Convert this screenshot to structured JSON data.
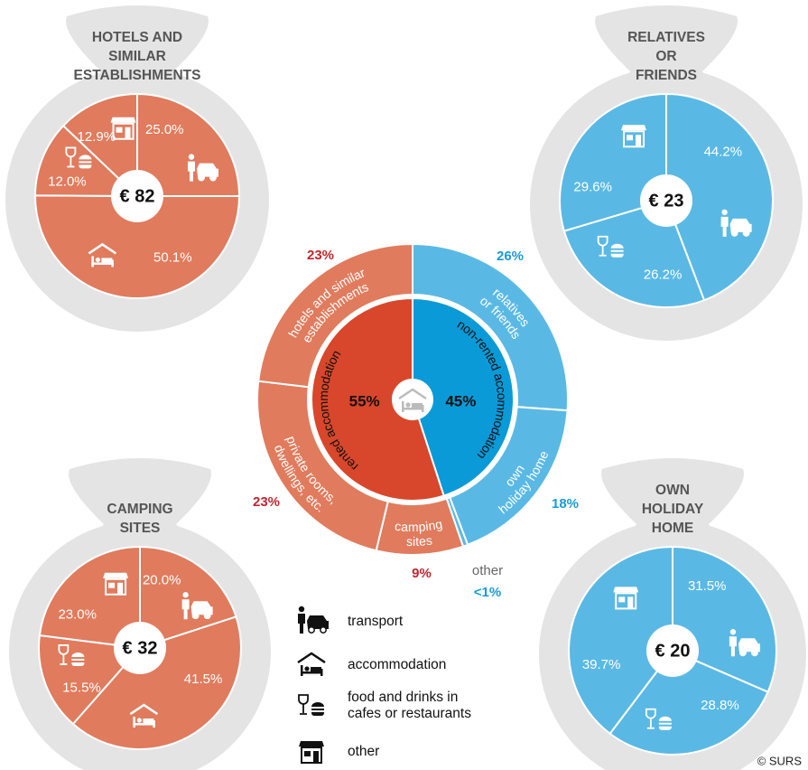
{
  "chart_data": [
    {
      "type": "sunburst",
      "inner": {
        "categories": [
          "non-rented accommodation",
          "rented accommodation"
        ],
        "values": [
          45,
          55
        ],
        "value_labels": [
          "45%",
          "55%"
        ],
        "colors": [
          "#0a9ad8",
          "#d8472b"
        ]
      },
      "outer": {
        "categories": [
          [
            "relatives",
            "or friends"
          ],
          [
            "own",
            "holiday home"
          ],
          [
            "other"
          ],
          [
            "camping",
            "sites"
          ],
          [
            "private rooms,",
            "dwellings, etc."
          ],
          [
            "hotels and similar",
            "establishments"
          ]
        ],
        "values": [
          26,
          18,
          0.5,
          9,
          23,
          23
        ],
        "value_labels": [
          "26%",
          "18%",
          "<1%",
          "9%",
          "23%",
          "23%"
        ],
        "colors": [
          "#5ab9e4",
          "#5ab9e4",
          "#5ab9e4",
          "#e07b5d",
          "#e07b5d",
          "#e07b5d"
        ],
        "value_label_colors": [
          "#1a9ad6",
          "#1a9ad6",
          "#1a9ad6",
          "#c0262d",
          "#c0262d",
          "#c0262d"
        ]
      }
    },
    {
      "type": "pie",
      "title": [
        "HOTELS AND",
        "SIMILAR",
        "ESTABLISHMENTS"
      ],
      "center_label": "€ 82",
      "values": [
        25.0,
        50.1,
        12.0,
        12.9
      ],
      "value_labels": [
        "25.0%",
        "50.1%",
        "12.0%",
        "12.9%"
      ],
      "color": "#e07b5d"
    },
    {
      "type": "pie",
      "title": [
        "RELATIVES",
        "OR",
        "FRIENDS"
      ],
      "center_label": "€ 23",
      "values": [
        44.2,
        null,
        26.2,
        29.6
      ],
      "value_labels": [
        "44.2%",
        null,
        "26.2%",
        "29.6%"
      ],
      "color": "#5ab9e4"
    },
    {
      "type": "pie",
      "title": [
        "CAMPING",
        "SITES"
      ],
      "center_label": "€ 32",
      "values": [
        20.0,
        41.5,
        15.5,
        23.0
      ],
      "value_labels": [
        "20.0%",
        "41.5%",
        "15.5%",
        "23.0%"
      ],
      "color": "#e07b5d"
    },
    {
      "type": "pie",
      "title": [
        "OWN",
        "HOLIDAY",
        "HOME"
      ],
      "center_label": "€ 20",
      "values": [
        31.5,
        null,
        28.8,
        39.7
      ],
      "value_labels": [
        "31.5%",
        null,
        "28.8%",
        "39.7%"
      ],
      "color": "#5ab9e4"
    }
  ],
  "legend": [
    [
      "transport"
    ],
    [
      "accommodation"
    ],
    [
      "food and drinks in",
      "cafes or restaurants"
    ],
    [
      "other"
    ]
  ],
  "credit": "© SURS"
}
